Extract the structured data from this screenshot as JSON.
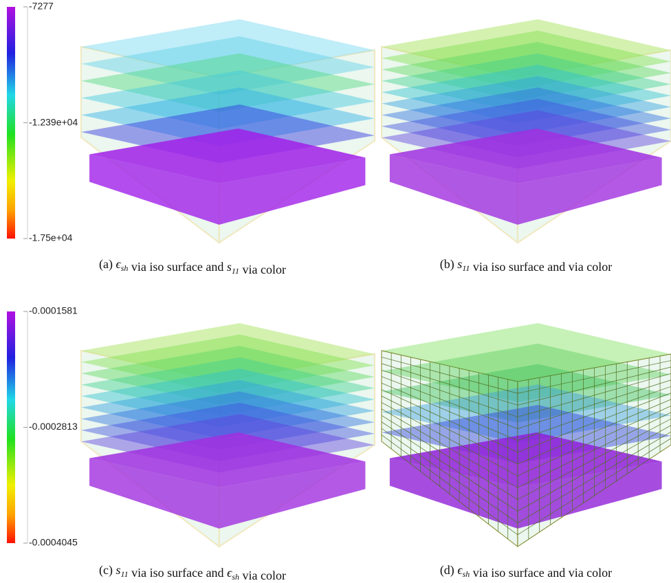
{
  "figures": [
    {
      "colorbar": {
        "lim": [
          -7277,
          -17500
        ],
        "ticks": [
          -7277,
          {
            "value": -12390,
            "label": "-1.239e+04"
          },
          {
            "value": -17500,
            "label": "-1.75e+04"
          }
        ]
      },
      "panels": [
        {
          "caption": [
            {
              "text": "(a) "
            },
            {
              "math": "ϵ",
              "sub": "sh"
            },
            {
              "text": " via iso surface and "
            },
            {
              "math": "s",
              "sub": "11"
            },
            {
              "text": " via color"
            }
          ]
        },
        {
          "caption": [
            {
              "text": "(b) "
            },
            {
              "math": "s",
              "sub": "11"
            },
            {
              "text": " via iso surface and via color"
            }
          ]
        }
      ]
    },
    {
      "colorbar": {
        "lim": [
          -0.0001581,
          -0.0004045
        ],
        "ticks": [
          -0.0001581,
          -0.0002813,
          -0.0004045
        ]
      },
      "panels": [
        {
          "caption": [
            {
              "text": "(c) "
            },
            {
              "math": "s",
              "sub": "11"
            },
            {
              "text": " via iso surface and "
            },
            {
              "math": "ϵ",
              "sub": "sh"
            },
            {
              "text": " via color"
            }
          ]
        },
        {
          "caption": [
            {
              "text": "(d) "
            },
            {
              "math": "ϵ",
              "sub": "sh"
            },
            {
              "text": " via iso surface and via color"
            }
          ]
        }
      ]
    }
  ]
}
